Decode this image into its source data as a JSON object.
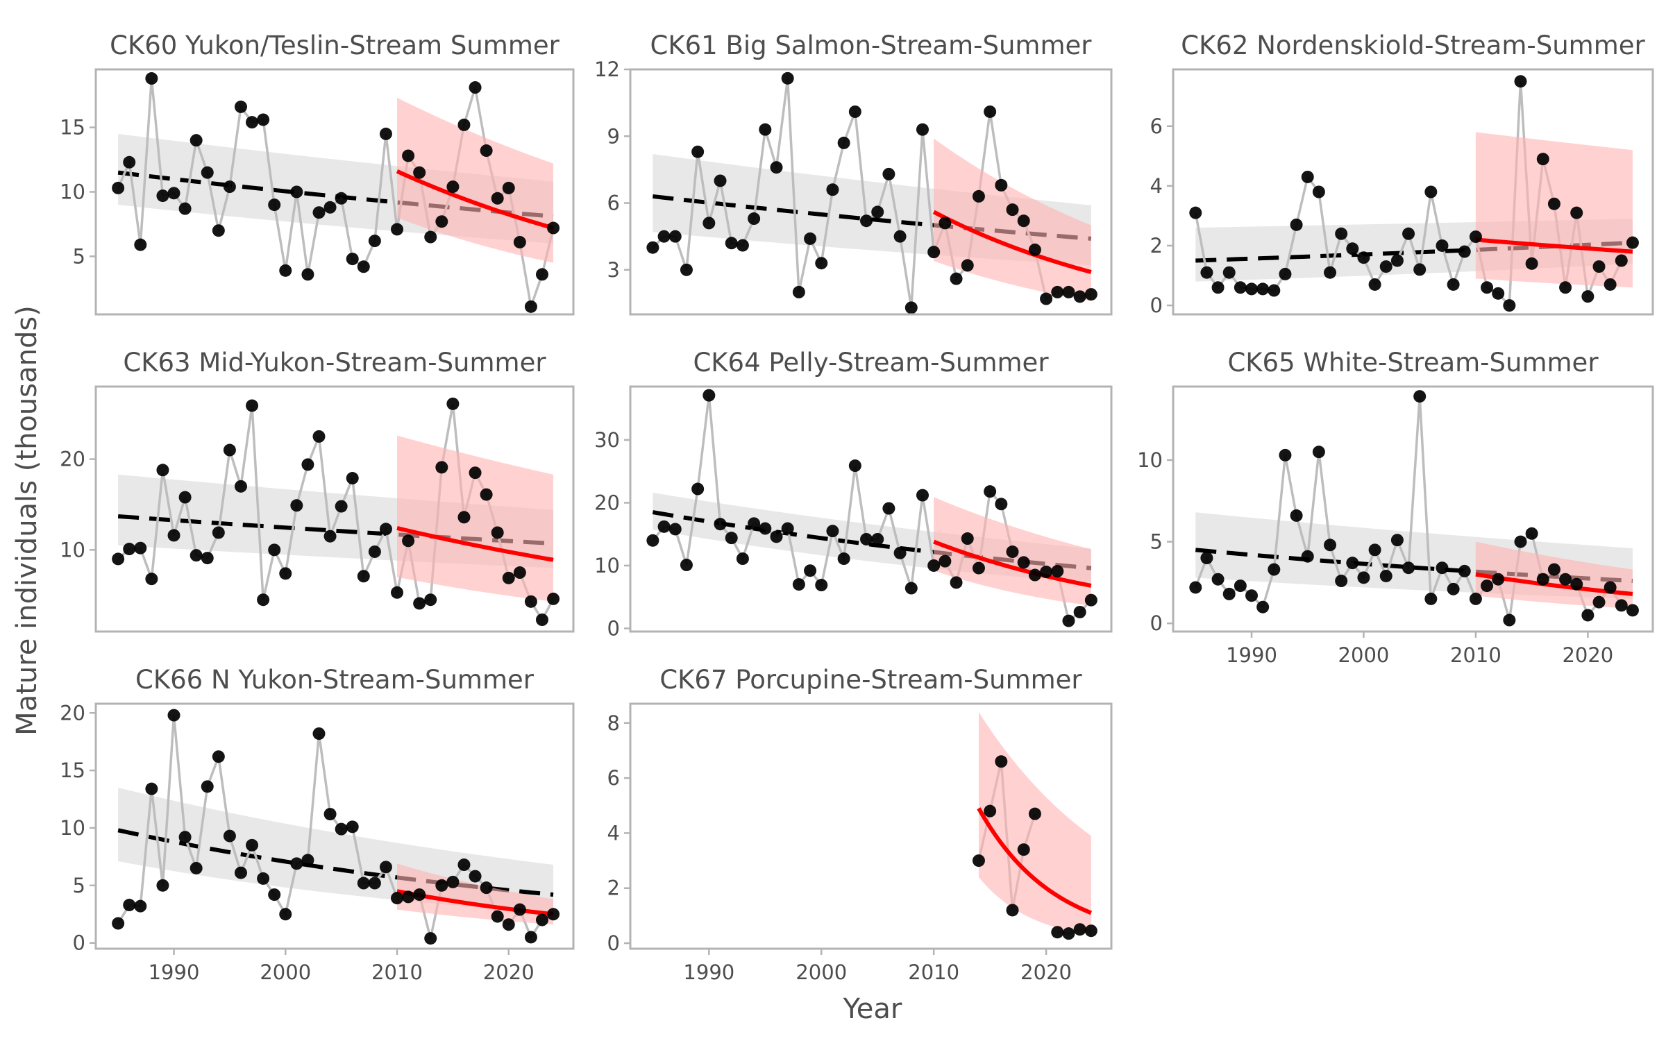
{
  "figure": {
    "ylabel": "Mature individuals (thousands)",
    "xlabel": "Year"
  },
  "chart_data": [
    {
      "type": "line",
      "title": "CK60 Yukon/Teslin-Stream Summer",
      "x": [
        1985,
        1986,
        1987,
        1988,
        1989,
        1990,
        1991,
        1992,
        1993,
        1994,
        1995,
        1996,
        1997,
        1998,
        1999,
        2000,
        2001,
        2002,
        2003,
        2004,
        2005,
        2006,
        2007,
        2008,
        2009,
        2010,
        2011,
        2012,
        2013,
        2014,
        2015,
        2016,
        2017,
        2018,
        2019,
        2020,
        2021,
        2022,
        2023,
        2024
      ],
      "y": [
        10.3,
        12.3,
        5.9,
        18.8,
        9.7,
        9.9,
        8.7,
        14.0,
        11.5,
        7.0,
        10.4,
        16.6,
        15.4,
        15.6,
        9.0,
        3.9,
        10.0,
        3.6,
        8.4,
        8.8,
        9.5,
        4.8,
        4.2,
        6.2,
        14.5,
        7.1,
        12.8,
        11.5,
        6.5,
        7.7,
        10.4,
        15.2,
        18.1,
        13.2,
        9.5,
        10.3,
        6.1,
        1.1,
        3.6,
        7.2
      ],
      "trend_all": {
        "x": [
          1985,
          2024
        ],
        "y": [
          11.5,
          8.1
        ],
        "ci_upper": [
          14.5,
          10.8
        ],
        "ci_lower": [
          9.0,
          6.0
        ]
      },
      "trend_recent": {
        "x": [
          2010,
          2024
        ],
        "y": [
          11.6,
          7.2
        ],
        "ci_upper": [
          17.3,
          12.2
        ],
        "ci_lower": [
          8.0,
          4.5
        ]
      },
      "ylim": [
        0.5,
        19.5
      ],
      "yticks": [
        5,
        10,
        15
      ],
      "xlim": [
        1983.0,
        2025.8
      ],
      "xticks": [],
      "xticklabels": []
    },
    {
      "type": "line",
      "title": "CK61 Big Salmon-Stream-Summer",
      "x": [
        1985,
        1986,
        1987,
        1988,
        1989,
        1990,
        1991,
        1992,
        1993,
        1994,
        1995,
        1996,
        1997,
        1998,
        1999,
        2000,
        2001,
        2002,
        2003,
        2004,
        2005,
        2006,
        2007,
        2008,
        2009,
        2010,
        2011,
        2012,
        2013,
        2014,
        2015,
        2016,
        2017,
        2018,
        2019,
        2020,
        2021,
        2022,
        2023,
        2024
      ],
      "y": [
        4.0,
        4.5,
        4.5,
        3.0,
        8.3,
        5.1,
        7.0,
        4.2,
        4.1,
        5.3,
        9.3,
        7.6,
        11.6,
        2.0,
        4.4,
        3.3,
        6.6,
        8.7,
        10.1,
        5.2,
        5.6,
        7.3,
        4.5,
        1.3,
        9.3,
        3.8,
        5.1,
        2.6,
        3.2,
        6.3,
        10.1,
        6.8,
        5.7,
        5.2,
        3.9,
        1.7,
        2.0,
        2.0,
        1.8,
        1.9
      ],
      "trend_all": {
        "x": [
          1985,
          2024
        ],
        "y": [
          6.3,
          4.4
        ],
        "ci_upper": [
          8.2,
          5.9
        ],
        "ci_lower": [
          4.7,
          3.2
        ]
      },
      "trend_recent": {
        "x": [
          2010,
          2024
        ],
        "y": [
          5.6,
          2.9
        ],
        "ci_upper": [
          8.9,
          5.0
        ],
        "ci_lower": [
          3.4,
          1.6
        ]
      },
      "ylim": [
        1.0,
        12.0
      ],
      "yticks": [
        3,
        6,
        9,
        12
      ],
      "xlim": [
        1983.0,
        2025.8
      ],
      "xticks": [],
      "xticklabels": []
    },
    {
      "type": "line",
      "title": "CK62 Nordenskiold-Stream-Summer",
      "x": [
        1985,
        1986,
        1987,
        1988,
        1989,
        1990,
        1991,
        1992,
        1993,
        1994,
        1995,
        1996,
        1997,
        1998,
        1999,
        2000,
        2001,
        2002,
        2003,
        2004,
        2005,
        2006,
        2007,
        2008,
        2009,
        2010,
        2011,
        2012,
        2013,
        2014,
        2015,
        2016,
        2017,
        2018,
        2019,
        2020,
        2021,
        2022,
        2023,
        2024
      ],
      "y": [
        3.1,
        1.1,
        0.6,
        1.1,
        0.6,
        0.55,
        0.55,
        0.5,
        1.05,
        2.7,
        4.3,
        3.8,
        1.1,
        2.4,
        1.9,
        1.6,
        0.7,
        1.3,
        1.5,
        2.4,
        1.2,
        3.8,
        2.0,
        0.7,
        1.8,
        2.3,
        0.6,
        0.4,
        0.0,
        7.5,
        1.4,
        4.9,
        3.4,
        0.6,
        3.1,
        0.3,
        1.3,
        0.7,
        1.5,
        2.1
      ],
      "trend_all": {
        "x": [
          1985,
          2024
        ],
        "y": [
          1.5,
          2.1
        ],
        "ci_upper": [
          2.6,
          2.9
        ],
        "ci_lower": [
          0.8,
          1.4
        ]
      },
      "trend_recent": {
        "x": [
          2010,
          2024
        ],
        "y": [
          2.2,
          1.8
        ],
        "ci_upper": [
          5.8,
          5.2
        ],
        "ci_lower": [
          0.9,
          0.6
        ]
      },
      "ylim": [
        -0.3,
        7.9
      ],
      "yticks": [
        0,
        2,
        4,
        6
      ],
      "xlim": [
        1983.0,
        2025.8
      ],
      "xticks": [],
      "xticklabels": []
    },
    {
      "type": "line",
      "title": "CK63 Mid-Yukon-Stream-Summer",
      "x": [
        1985,
        1986,
        1987,
        1988,
        1989,
        1990,
        1991,
        1992,
        1993,
        1994,
        1995,
        1996,
        1997,
        1998,
        1999,
        2000,
        2001,
        2002,
        2003,
        2004,
        2005,
        2006,
        2007,
        2008,
        2009,
        2010,
        2011,
        2012,
        2013,
        2014,
        2015,
        2016,
        2017,
        2018,
        2019,
        2020,
        2021,
        2022,
        2023,
        2024
      ],
      "y": [
        9.0,
        10.1,
        10.2,
        6.8,
        18.8,
        11.6,
        15.8,
        9.4,
        9.1,
        11.9,
        21.0,
        17.0,
        25.9,
        4.5,
        10.0,
        7.4,
        14.9,
        19.4,
        22.5,
        11.5,
        14.8,
        17.9,
        7.1,
        9.8,
        12.3,
        5.3,
        11.0,
        4.1,
        4.5,
        19.1,
        26.1,
        13.6,
        18.5,
        16.1,
        11.9,
        6.9,
        7.5,
        4.3,
        2.3,
        4.6
      ],
      "trend_all": {
        "x": [
          1985,
          2024
        ],
        "y": [
          13.7,
          10.7
        ],
        "ci_upper": [
          18.3,
          14.4
        ],
        "ci_lower": [
          10.5,
          8.0
        ]
      },
      "trend_recent": {
        "x": [
          2010,
          2024
        ],
        "y": [
          12.4,
          8.9
        ],
        "ci_upper": [
          22.6,
          18.3
        ],
        "ci_lower": [
          7.0,
          4.3
        ]
      },
      "ylim": [
        1.0,
        28.0
      ],
      "yticks": [
        10,
        20
      ],
      "xlim": [
        1983.0,
        2025.8
      ],
      "xticks": [],
      "xticklabels": []
    },
    {
      "type": "line",
      "title": "CK64 Pelly-Stream-Summer",
      "x": [
        1985,
        1986,
        1987,
        1988,
        1989,
        1990,
        1991,
        1992,
        1993,
        1994,
        1995,
        1996,
        1997,
        1998,
        1999,
        2000,
        2001,
        2002,
        2003,
        2004,
        2005,
        2006,
        2007,
        2008,
        2009,
        2010,
        2011,
        2012,
        2013,
        2014,
        2015,
        2016,
        2017,
        2018,
        2019,
        2020,
        2021,
        2022,
        2023,
        2024
      ],
      "y": [
        14.0,
        16.2,
        15.8,
        10.1,
        22.2,
        37.1,
        16.6,
        14.4,
        11.1,
        16.7,
        15.9,
        14.6,
        15.9,
        7.0,
        9.2,
        6.9,
        15.5,
        11.1,
        25.9,
        14.2,
        14.2,
        19.1,
        12.0,
        6.4,
        21.2,
        10.0,
        10.7,
        7.3,
        14.3,
        9.6,
        21.8,
        19.8,
        12.2,
        10.5,
        8.5,
        9.0,
        9.1,
        1.2,
        2.6,
        4.5
      ],
      "trend_all": {
        "x": [
          1985,
          2024
        ],
        "y": [
          18.5,
          9.6
        ],
        "ci_upper": [
          21.6,
          12.7
        ],
        "ci_lower": [
          15.7,
          7.2
        ]
      },
      "trend_recent": {
        "x": [
          2010,
          2024
        ],
        "y": [
          13.8,
          6.8
        ],
        "ci_upper": [
          20.9,
          12.6
        ],
        "ci_lower": [
          9.2,
          3.6
        ]
      },
      "ylim": [
        -0.5,
        38.5
      ],
      "yticks": [
        0,
        10,
        20,
        30
      ],
      "xlim": [
        1983.0,
        2025.8
      ],
      "xticks": [],
      "xticklabels": []
    },
    {
      "type": "line",
      "title": "CK65 White-Stream-Summer",
      "x": [
        1985,
        1986,
        1987,
        1988,
        1989,
        1990,
        1991,
        1992,
        1993,
        1994,
        1995,
        1996,
        1997,
        1998,
        1999,
        2000,
        2001,
        2002,
        2003,
        2004,
        2005,
        2006,
        2007,
        2008,
        2009,
        2010,
        2011,
        2012,
        2013,
        2014,
        2015,
        2016,
        2017,
        2018,
        2019,
        2020,
        2021,
        2022,
        2023,
        2024
      ],
      "y": [
        2.2,
        4.0,
        2.7,
        1.8,
        2.3,
        1.7,
        1.0,
        3.3,
        10.3,
        6.6,
        4.1,
        10.5,
        4.8,
        2.6,
        3.7,
        2.8,
        4.5,
        2.9,
        5.1,
        3.4,
        13.9,
        1.5,
        3.4,
        2.1,
        3.2,
        1.5,
        2.3,
        2.7,
        0.2,
        5.0,
        5.5,
        2.7,
        3.3,
        2.7,
        2.4,
        0.5,
        1.3,
        2.2,
        1.1,
        0.8
      ],
      "trend_all": {
        "x": [
          1985,
          2024
        ],
        "y": [
          4.5,
          2.6
        ],
        "ci_upper": [
          6.8,
          4.6
        ],
        "ci_lower": [
          2.8,
          1.5
        ]
      },
      "trend_recent": {
        "x": [
          2010,
          2024
        ],
        "y": [
          3.0,
          1.8
        ],
        "ci_upper": [
          5.0,
          3.3
        ],
        "ci_lower": [
          1.7,
          0.9
        ]
      },
      "ylim": [
        -0.5,
        14.5
      ],
      "yticks": [
        0,
        5,
        10
      ],
      "xlim": [
        1983.0,
        2025.8
      ],
      "xticks": [
        1990,
        2000,
        2010,
        2020
      ],
      "xticklabels": [
        "1990",
        "2000",
        "2010",
        "2020"
      ]
    },
    {
      "type": "line",
      "title": "CK66 N Yukon-Stream-Summer",
      "x": [
        1985,
        1986,
        1987,
        1988,
        1989,
        1990,
        1991,
        1992,
        1993,
        1994,
        1995,
        1996,
        1997,
        1998,
        1999,
        2000,
        2001,
        2002,
        2003,
        2004,
        2005,
        2006,
        2007,
        2008,
        2009,
        2010,
        2011,
        2012,
        2013,
        2014,
        2015,
        2016,
        2017,
        2018,
        2019,
        2020,
        2021,
        2022,
        2023,
        2024
      ],
      "y": [
        1.7,
        3.3,
        3.2,
        13.4,
        5.0,
        19.8,
        9.2,
        6.5,
        13.6,
        16.2,
        9.3,
        6.1,
        8.5,
        5.6,
        4.2,
        2.5,
        6.9,
        7.2,
        18.2,
        11.2,
        9.9,
        10.1,
        5.2,
        5.2,
        6.6,
        3.9,
        4.0,
        4.2,
        0.4,
        5.0,
        5.3,
        6.8,
        5.8,
        4.8,
        2.3,
        1.6,
        2.9,
        0.5,
        2.0,
        2.5
      ],
      "trend_all": {
        "x": [
          1985,
          2024
        ],
        "y": [
          9.8,
          4.2
        ],
        "ci_upper": [
          13.5,
          6.8
        ],
        "ci_lower": [
          7.1,
          2.6
        ]
      },
      "trend_recent": {
        "x": [
          2010,
          2024
        ],
        "y": [
          4.5,
          2.5
        ],
        "ci_upper": [
          6.9,
          3.8
        ],
        "ci_lower": [
          2.9,
          1.6
        ]
      },
      "ylim": [
        -0.5,
        20.8
      ],
      "yticks": [
        0,
        5,
        10,
        15,
        20
      ],
      "xlim": [
        1983.0,
        2025.8
      ],
      "xticks": [
        1990,
        2000,
        2010,
        2020
      ],
      "xticklabels": [
        "1990",
        "2000",
        "2010",
        "2020"
      ]
    },
    {
      "type": "line",
      "title": "CK67 Porcupine-Stream-Summer",
      "x": [
        2014,
        2015,
        2016,
        2017,
        2018,
        2019,
        2020,
        2021,
        2022,
        2023,
        2024
      ],
      "y": [
        3.0,
        4.8,
        6.6,
        1.2,
        3.4,
        4.7,
        null,
        0.4,
        0.35,
        0.5,
        0.45
      ],
      "trend_recent": {
        "x": [
          2014,
          2024
        ],
        "y": [
          4.9,
          1.1
        ],
        "ci_upper": [
          8.4,
          3.9
        ],
        "ci_lower": [
          2.4,
          0.3
        ]
      },
      "ylim": [
        -0.2,
        8.7
      ],
      "yticks": [
        0,
        2,
        4,
        6,
        8
      ],
      "xlim": [
        1983.0,
        2025.8
      ],
      "xticks": [
        1990,
        2000,
        2010,
        2020
      ],
      "xticklabels": [
        "1990",
        "2000",
        "2010",
        "2020"
      ]
    }
  ],
  "colors": {
    "points": "#000000",
    "connector": "#bdbdbd",
    "trend_all": "#000000",
    "band_all": "#d9d9d9",
    "trend_recent": "#ff0000",
    "band_recent": "#ffb3b3",
    "frame": "#b3b3b3",
    "text": "#4d4d4d"
  }
}
